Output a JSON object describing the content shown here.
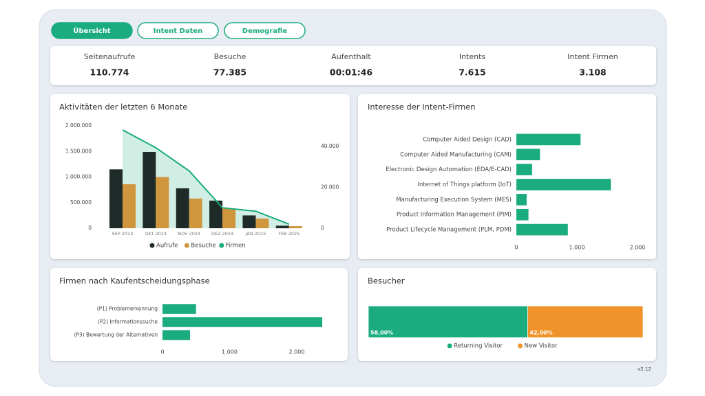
{
  "tabs": [
    {
      "label": "Übersicht",
      "active": true
    },
    {
      "label": "Intent Daten",
      "active": false
    },
    {
      "label": "Demografie",
      "active": false
    }
  ],
  "kpis": [
    {
      "label": "Seitenaufrufe",
      "value": "110.774"
    },
    {
      "label": "Besuche",
      "value": "77.385"
    },
    {
      "label": "Aufenthalt",
      "value": "00:01:46"
    },
    {
      "label": "Intents",
      "value": "7.615"
    },
    {
      "label": "Intent Firmen",
      "value": "3.108"
    }
  ],
  "version": "v2.12",
  "chart_data": [
    {
      "type": "combo",
      "title": "Aktivitäten der letzten 6 Monate",
      "categories": [
        "SEP 2024",
        "OKT 2024",
        "NOV 2024",
        "DEZ 2024",
        "JAN 2025",
        "FEB 2025"
      ],
      "series": [
        {
          "name": "Aufrufe",
          "color": "#1f2b28",
          "values": [
            1150000,
            1490000,
            780000,
            540000,
            250000,
            50000
          ]
        },
        {
          "name": "Besuche",
          "color": "#cf963d",
          "values": [
            860000,
            1000000,
            580000,
            390000,
            190000,
            40000
          ]
        },
        {
          "name": "Firmen",
          "color": "#1aab7f",
          "axis": "y2",
          "values": [
            48000,
            39300,
            28000,
            10000,
            8300,
            2000
          ]
        }
      ],
      "ylim": [
        0,
        2000000
      ],
      "yticks": [
        0,
        {
          "value": 500000,
          "label": "500.000"
        },
        {
          "value": 1000000,
          "label": "1.000.000"
        },
        {
          "value": 1500000,
          "label": "1.500.000"
        },
        {
          "value": 2000000,
          "label": "2.000.000"
        }
      ],
      "y2lim": [
        0,
        50000
      ],
      "y2ticks": [
        0,
        {
          "value": 20000,
          "label": "20.000"
        },
        {
          "value": 40000,
          "label": "40.000"
        }
      ],
      "legend": "bottom"
    },
    {
      "type": "barh",
      "title": "Interesse der Intent-Firmen",
      "categories": [
        "Computer Aided Design (CAD)",
        "Computer Aided Manufacturing (CAM)",
        "Electronic Design Automation (EDA/E-CAD)",
        "Internet of Things platform (IoT)",
        "Manufacturing Execution System (MES)",
        "Product Information Management (PIM)",
        "Product Lifecycle Management (PLM, PDM)"
      ],
      "values": [
        1060,
        390,
        260,
        1560,
        170,
        200,
        850
      ],
      "color": "#1aab7f",
      "xlim": [
        0,
        2000
      ],
      "xticks": [
        0,
        {
          "value": 1000,
          "label": "1.000"
        },
        {
          "value": 2000,
          "label": "2.000"
        }
      ]
    },
    {
      "type": "barh",
      "title": "Firmen nach Kaufentscheidungsphase",
      "categories": [
        "(P1) Problemerkennung",
        "(P2) Informationssuche",
        "(P3) Bewertung der Alternativen"
      ],
      "values": [
        500,
        2380,
        410
      ],
      "color": "#1aab7f",
      "xlim": [
        0,
        2400
      ],
      "xticks": [
        0,
        {
          "value": 1000,
          "label": "1.000"
        },
        {
          "value": 2000,
          "label": "2.000"
        }
      ]
    },
    {
      "type": "stacked",
      "title": "Besucher",
      "series": [
        {
          "name": "Returning Visitor",
          "color": "#1aab7f",
          "values": [
            58
          ],
          "value_labels": [
            "58,00%"
          ]
        },
        {
          "name": "New Visitor",
          "color": "#f0932b",
          "values": [
            42
          ],
          "value_labels": [
            "42,00%"
          ]
        }
      ],
      "xlim": [
        0,
        100
      ],
      "legend": "bottom"
    }
  ]
}
